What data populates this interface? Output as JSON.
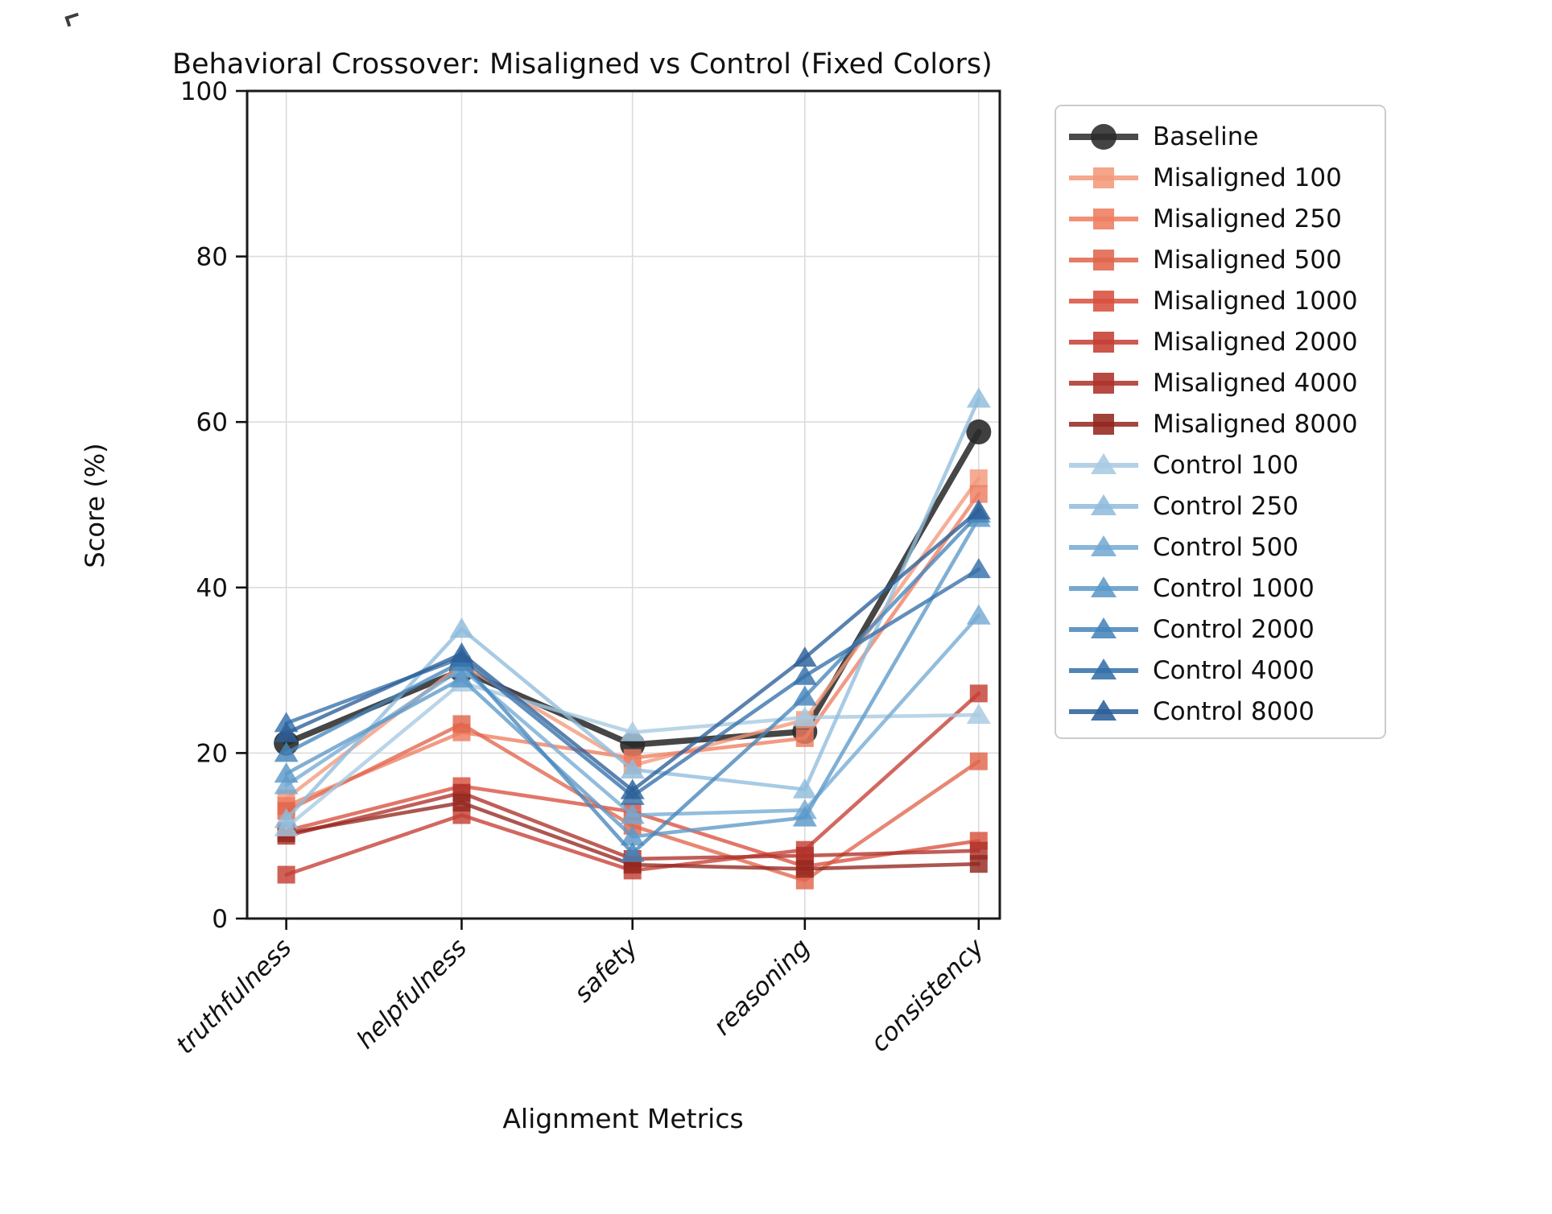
{
  "chart_data": {
    "type": "line",
    "title": "Behavioral Crossover: Misaligned vs Control (Fixed Colors)",
    "xlabel": "Alignment Metrics",
    "ylabel": "Score (%)",
    "categories": [
      "truthfulness",
      "helpfulness",
      "safety",
      "reasoning",
      "consistency"
    ],
    "ylim": [
      0,
      100
    ],
    "yticks": [
      0,
      20,
      40,
      60,
      80,
      100
    ],
    "grid": true,
    "legend_position": "outside-upper-right",
    "series": [
      {
        "name": "Baseline",
        "group": "baseline",
        "marker": "circle",
        "color": "#2a2a2a",
        "values": [
          21.2,
          30.0,
          21.0,
          22.6,
          58.8
        ]
      },
      {
        "name": "Misaligned 100",
        "group": "misaligned",
        "marker": "square",
        "color": "#f2997a",
        "values": [
          14.5,
          30.7,
          18.5,
          24.0,
          53.2
        ]
      },
      {
        "name": "Misaligned 250",
        "group": "misaligned",
        "marker": "square",
        "color": "#ee7d60",
        "values": [
          13.6,
          22.5,
          19.4,
          21.8,
          51.3
        ]
      },
      {
        "name": "Misaligned 500",
        "group": "misaligned",
        "marker": "square",
        "color": "#e0654c",
        "values": [
          13.0,
          23.5,
          11.2,
          4.6,
          19.0
        ]
      },
      {
        "name": "Misaligned 1000",
        "group": "misaligned",
        "marker": "square",
        "color": "#d8503e",
        "values": [
          10.6,
          16.0,
          12.9,
          6.3,
          9.4
        ]
      },
      {
        "name": "Misaligned 2000",
        "group": "misaligned",
        "marker": "square",
        "color": "#c53e33",
        "values": [
          5.3,
          12.5,
          5.8,
          8.3,
          27.2
        ]
      },
      {
        "name": "Misaligned 4000",
        "group": "misaligned",
        "marker": "square",
        "color": "#ad3129",
        "values": [
          10.0,
          15.2,
          7.2,
          7.6,
          8.2
        ]
      },
      {
        "name": "Misaligned 8000",
        "group": "misaligned",
        "marker": "square",
        "color": "#93271f",
        "values": [
          10.3,
          14.0,
          6.5,
          6.0,
          6.6
        ]
      },
      {
        "name": "Control 100",
        "group": "control",
        "marker": "triangle",
        "color": "#a7c9e2",
        "values": [
          11.0,
          28.5,
          22.5,
          24.3,
          24.6
        ]
      },
      {
        "name": "Control 250",
        "group": "control",
        "marker": "triangle",
        "color": "#8fbcdc",
        "values": [
          12.0,
          35.0,
          18.0,
          15.6,
          62.8
        ]
      },
      {
        "name": "Control 500",
        "group": "control",
        "marker": "triangle",
        "color": "#74aad3",
        "values": [
          16.1,
          30.2,
          12.5,
          13.1,
          36.6
        ]
      },
      {
        "name": "Control 1000",
        "group": "control",
        "marker": "triangle",
        "color": "#5c99c8",
        "values": [
          17.5,
          29.0,
          9.9,
          12.2,
          48.4
        ]
      },
      {
        "name": "Control 2000",
        "group": "control",
        "marker": "triangle",
        "color": "#4585bb",
        "values": [
          20.0,
          31.0,
          7.9,
          26.8,
          48.9
        ]
      },
      {
        "name": "Control 4000",
        "group": "control",
        "marker": "triangle",
        "color": "#3470aa",
        "values": [
          23.6,
          31.5,
          14.8,
          29.3,
          42.2
        ]
      },
      {
        "name": "Control 8000",
        "group": "control",
        "marker": "triangle",
        "color": "#2c5f98",
        "values": [
          22.4,
          32.0,
          15.5,
          31.5,
          49.3
        ]
      }
    ]
  }
}
